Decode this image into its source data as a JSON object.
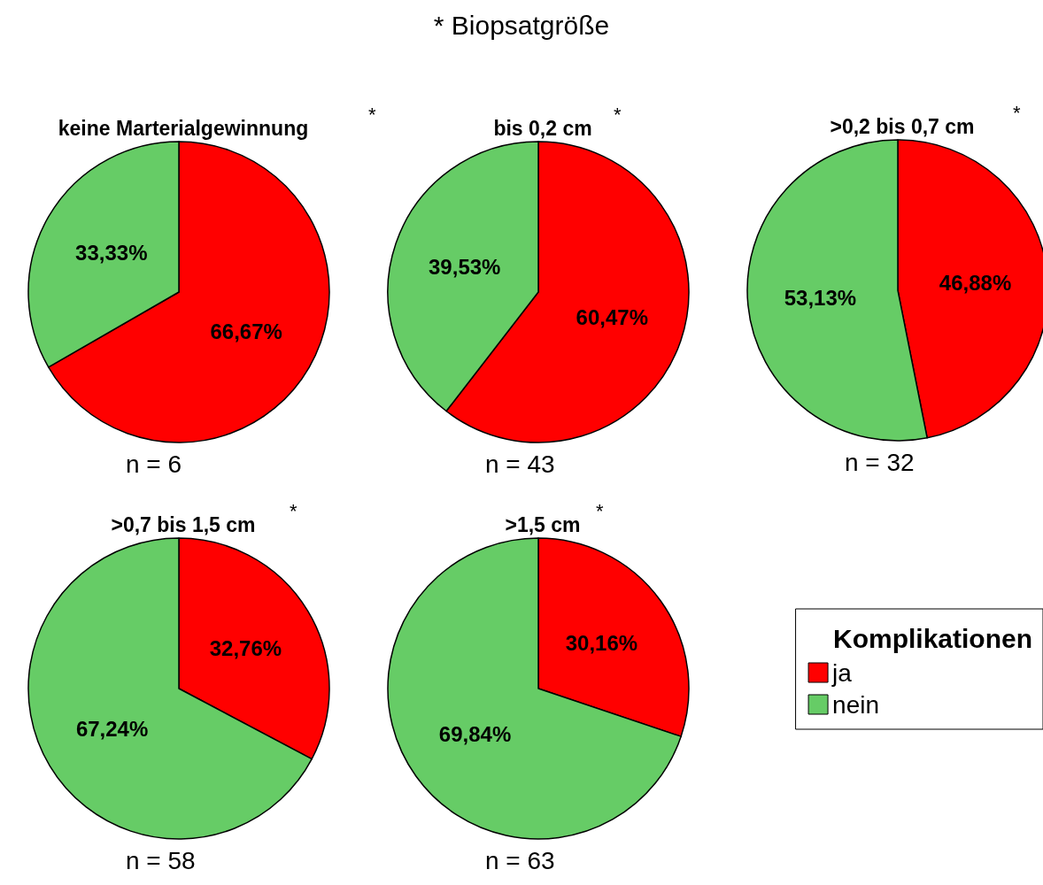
{
  "chart_data": [
    {
      "type": "pie",
      "title": "keine Marterialgewinnung",
      "categories": [
        null,
        null
      ],
      "values": [
        66.67,
        33.33
      ],
      "value_labels": [
        "66,67%",
        "33,33%"
      ],
      "colors": [
        "#ff0000",
        "#66cc66"
      ],
      "legend": false,
      "annotations": [
        "* Biopsatgröße",
        "*",
        "n = 6"
      ]
    },
    {
      "type": "pie",
      "title": "bis 0,2 cm",
      "categories": [
        null,
        null
      ],
      "values": [
        60.47,
        39.53
      ],
      "value_labels": [
        "60,47%",
        "39,53%"
      ],
      "colors": [
        "#ff0000",
        "#66cc66"
      ],
      "legend": false,
      "annotations": [
        "*",
        "n = 43"
      ]
    },
    {
      "type": "pie",
      "title": ">0,2 bis 0,7 cm",
      "categories": [
        null,
        null
      ],
      "values": [
        46.88,
        53.13
      ],
      "value_labels": [
        "46,88%",
        "53,13%"
      ],
      "colors": [
        "#ff0000",
        "#66cc66"
      ],
      "legend": false,
      "annotations": [
        "*",
        "n = 32"
      ]
    },
    {
      "type": "pie",
      "title": ">0,7 bis 1,5 cm",
      "categories": [
        null,
        null
      ],
      "values": [
        32.76,
        67.24
      ],
      "value_labels": [
        "32,76%",
        "67,24%"
      ],
      "colors": [
        "#ff0000",
        "#66cc66"
      ],
      "legend": false,
      "annotations": [
        "*",
        "n = 58"
      ]
    },
    {
      "type": "pie",
      "title": ">1,5 cm",
      "categories": [
        "ja",
        "nein"
      ],
      "values": [
        30.16,
        69.84
      ],
      "value_labels": [
        "30,16%",
        "69,84%"
      ],
      "colors": [
        "#ff0000",
        "#66cc66"
      ],
      "legend": "right",
      "legend_title": "Komplikationen",
      "annotations": [
        "*",
        "n = 63"
      ]
    }
  ]
}
